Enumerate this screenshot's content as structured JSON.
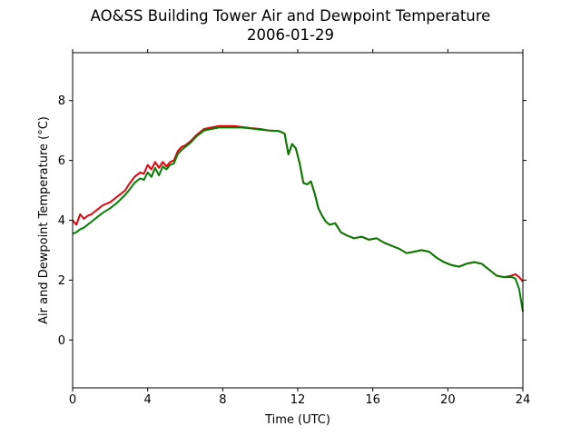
{
  "chart_data": {
    "type": "line",
    "title": "AO&SS Building Tower Air and Dewpoint Temperature",
    "subtitle": "2006-01-29",
    "xlabel": "Time (UTC)",
    "ylabel": "Air and Dewpoint Temperature (°C)",
    "xlim": [
      0,
      24
    ],
    "ylim": [
      -1.6,
      9.6
    ],
    "xticks": [
      0,
      4,
      8,
      12,
      16,
      20,
      24
    ],
    "yticks": [
      0,
      2,
      4,
      6,
      8
    ],
    "grid": false,
    "series": [
      {
        "color": "#e8000b",
        "x": [
          0,
          0.2,
          0.4,
          0.6,
          0.8,
          1.0,
          1.3,
          1.6,
          2.0,
          2.4,
          2.8,
          3.0,
          3.3,
          3.6,
          3.8,
          4.0,
          4.2,
          4.4,
          4.6,
          4.8,
          5.0,
          5.2,
          5.4,
          5.6,
          5.8,
          6.0,
          6.3,
          6.6,
          7.0,
          7.4,
          7.8,
          8.2,
          8.6,
          9.0,
          9.5,
          10.0,
          10.5,
          11.0,
          11.3,
          11.5,
          11.7,
          11.9,
          12.1,
          12.3,
          12.5,
          12.7,
          12.9,
          13.1,
          13.3,
          13.5,
          13.7,
          14.0,
          14.3,
          14.6,
          15.0,
          15.4,
          15.8,
          16.2,
          16.6,
          17.0,
          17.4,
          17.8,
          18.2,
          18.6,
          19.0,
          19.4,
          19.8,
          20.2,
          20.6,
          21.0,
          21.4,
          21.8,
          22.2,
          22.6,
          23.0,
          23.4,
          23.6,
          23.8,
          24.0
        ],
        "y": [
          4.0,
          3.85,
          4.2,
          4.05,
          4.15,
          4.2,
          4.35,
          4.5,
          4.6,
          4.8,
          5.0,
          5.2,
          5.45,
          5.6,
          5.55,
          5.85,
          5.7,
          5.95,
          5.75,
          5.95,
          5.8,
          5.95,
          6.0,
          6.3,
          6.45,
          6.5,
          6.65,
          6.85,
          7.05,
          7.1,
          7.15,
          7.15,
          7.15,
          7.12,
          7.08,
          7.05,
          7.0,
          6.98,
          6.9,
          6.2,
          6.55,
          6.4,
          5.9,
          5.25,
          5.2,
          5.3,
          4.9,
          4.4,
          4.15,
          3.95,
          3.85,
          3.9,
          3.6,
          3.5,
          3.4,
          3.45,
          3.35,
          3.4,
          3.25,
          3.15,
          3.05,
          2.9,
          2.95,
          3.0,
          2.95,
          2.75,
          2.6,
          2.5,
          2.45,
          2.55,
          2.6,
          2.55,
          2.35,
          2.15,
          2.1,
          2.15,
          2.2,
          2.1,
          1.95
        ]
      },
      {
        "color": "#008000",
        "x": [
          0,
          0.2,
          0.4,
          0.6,
          0.8,
          1.0,
          1.3,
          1.6,
          2.0,
          2.4,
          2.8,
          3.0,
          3.3,
          3.6,
          3.8,
          4.0,
          4.2,
          4.4,
          4.6,
          4.8,
          5.0,
          5.2,
          5.4,
          5.6,
          5.8,
          6.0,
          6.3,
          6.6,
          7.0,
          7.4,
          7.8,
          8.2,
          8.6,
          9.0,
          9.5,
          10.0,
          10.5,
          11.0,
          11.3,
          11.5,
          11.7,
          11.9,
          12.1,
          12.3,
          12.5,
          12.7,
          12.9,
          13.1,
          13.3,
          13.5,
          13.7,
          14.0,
          14.3,
          14.6,
          15.0,
          15.4,
          15.8,
          16.2,
          16.6,
          17.0,
          17.4,
          17.8,
          18.2,
          18.6,
          19.0,
          19.4,
          19.8,
          20.2,
          20.6,
          21.0,
          21.4,
          21.8,
          22.2,
          22.6,
          23.0,
          23.4,
          23.6,
          23.8,
          24.0
        ],
        "y": [
          3.55,
          3.6,
          3.7,
          3.75,
          3.85,
          3.95,
          4.1,
          4.25,
          4.4,
          4.6,
          4.85,
          5.0,
          5.25,
          5.4,
          5.35,
          5.6,
          5.45,
          5.75,
          5.5,
          5.8,
          5.7,
          5.85,
          5.9,
          6.2,
          6.35,
          6.45,
          6.6,
          6.8,
          7.0,
          7.05,
          7.1,
          7.1,
          7.1,
          7.1,
          7.07,
          7.03,
          7.0,
          6.98,
          6.9,
          6.2,
          6.55,
          6.4,
          5.9,
          5.25,
          5.2,
          5.3,
          4.9,
          4.4,
          4.15,
          3.95,
          3.85,
          3.9,
          3.6,
          3.5,
          3.4,
          3.45,
          3.35,
          3.4,
          3.25,
          3.15,
          3.05,
          2.9,
          2.95,
          3.0,
          2.95,
          2.75,
          2.6,
          2.5,
          2.45,
          2.55,
          2.6,
          2.55,
          2.35,
          2.15,
          2.1,
          2.1,
          2.05,
          1.7,
          0.95
        ]
      }
    ]
  }
}
